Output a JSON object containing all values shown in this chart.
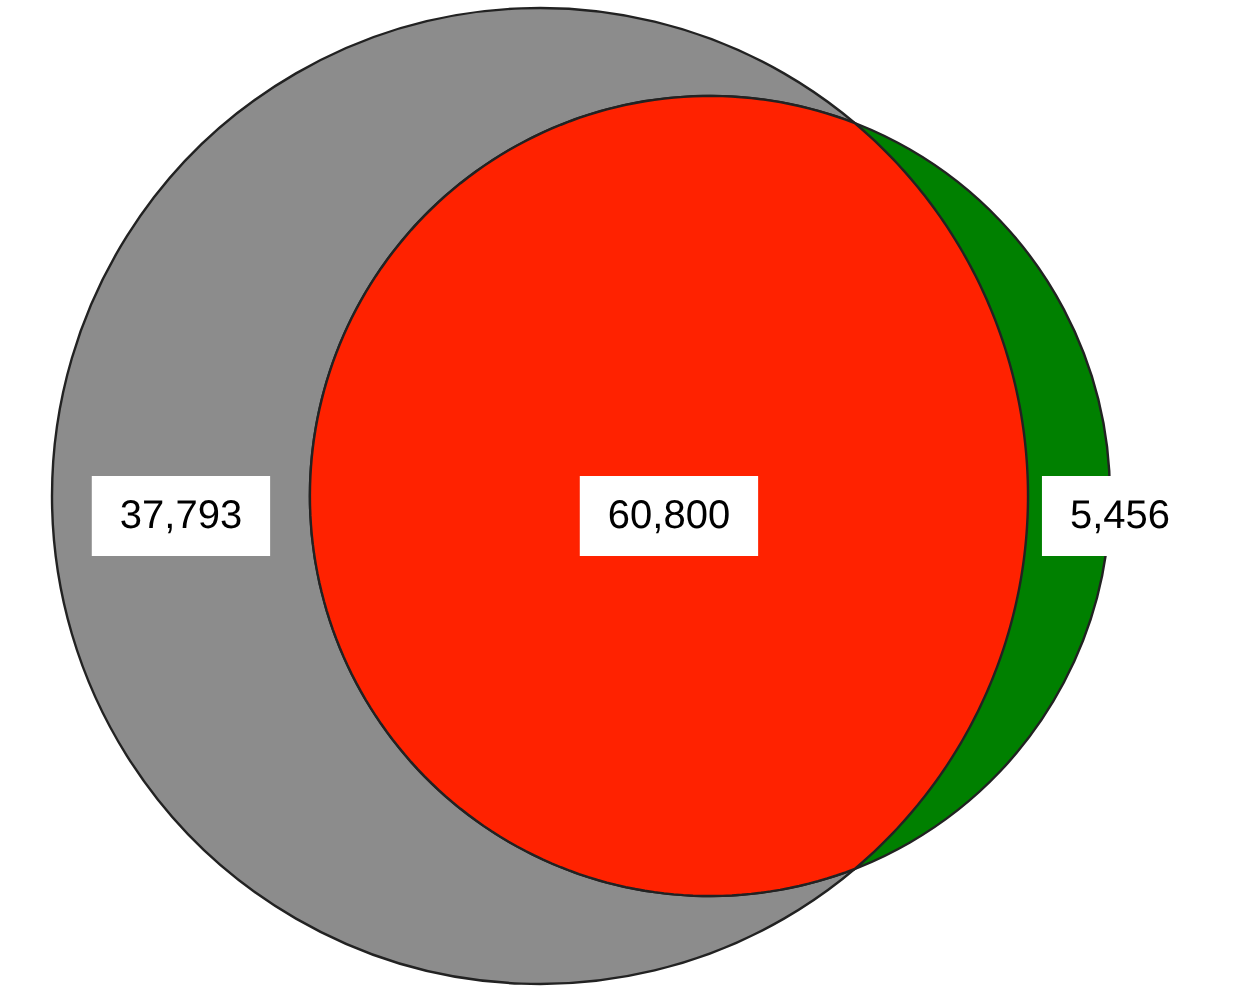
{
  "chart_data": {
    "type": "other",
    "categories": [
      null,
      null,
      null
    ],
    "values": [
      37793,
      60800,
      5456
    ],
    "value_labels": [
      "37,793",
      "60,800",
      "5,456"
    ],
    "colors": [
      "#8c8c8c",
      "#ff2200",
      "#008000"
    ]
  }
}
